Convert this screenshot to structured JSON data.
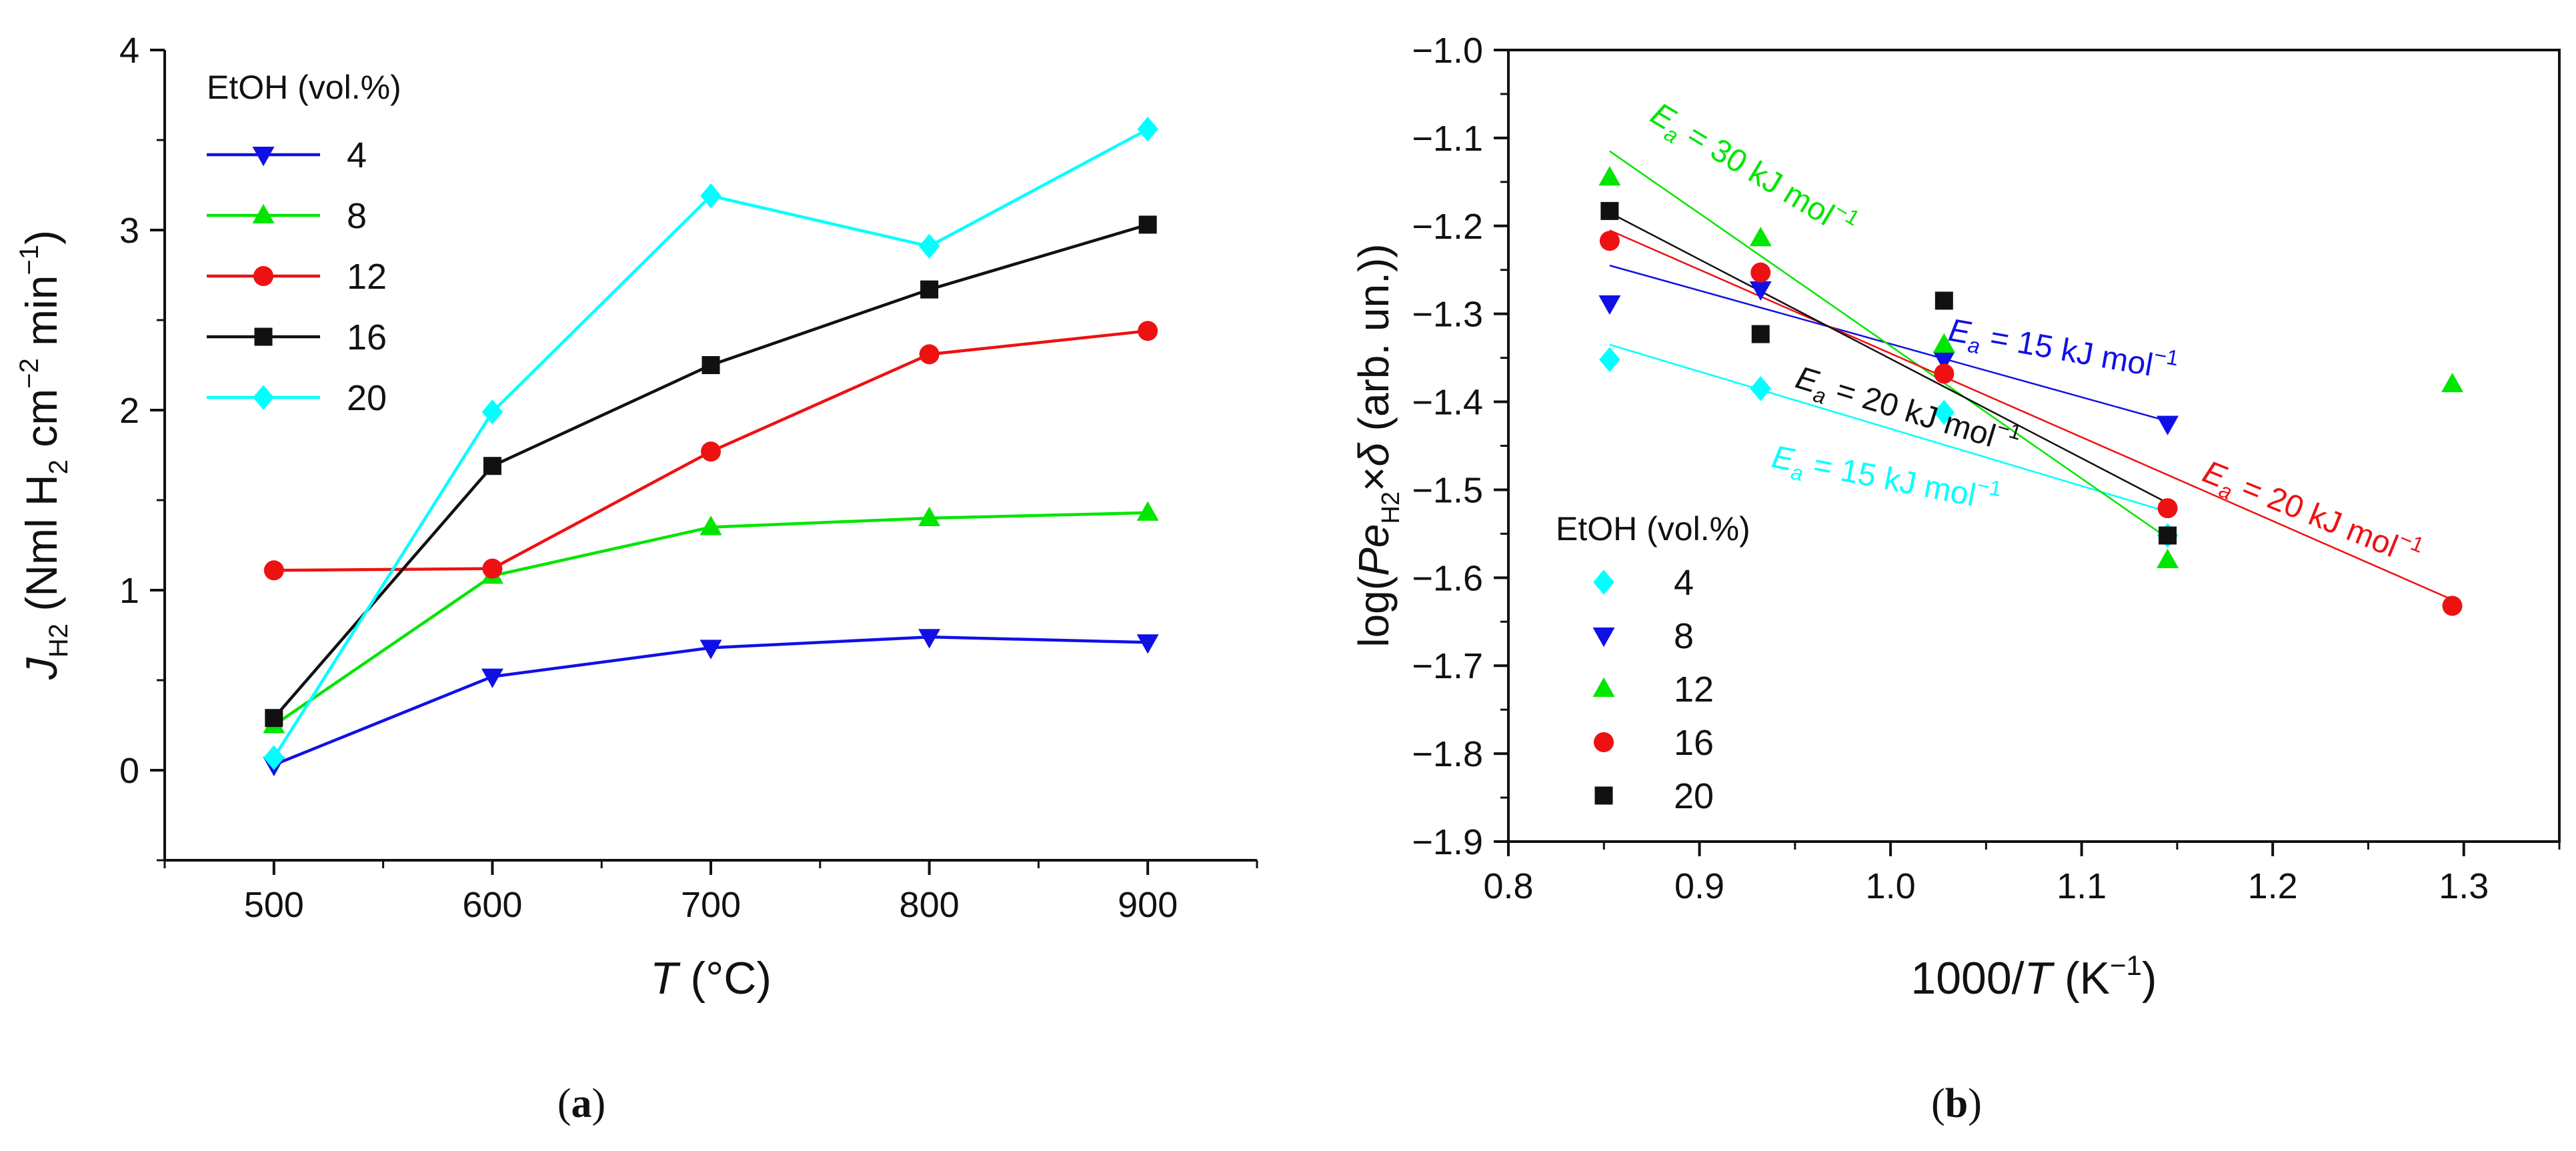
{
  "panels": {
    "a": {
      "caption": "(a)"
    },
    "b": {
      "caption": "(b)"
    }
  },
  "colors": {
    "4": "#1010e6",
    "8": "#00e600",
    "12": "#ee1111",
    "16": "#111111",
    "20": "#00ffff"
  },
  "chart_data": [
    {
      "type": "line",
      "panel": "a",
      "xlabel": "T (°C)",
      "ylabel": "J_H2 (Nml H2 cm^-2 min^-1)",
      "xlim": [
        450,
        950
      ],
      "ylim": [
        -0.5,
        4
      ],
      "xticks": [
        500,
        600,
        700,
        800,
        900
      ],
      "yticks": [
        0,
        1,
        2,
        3,
        4
      ],
      "legend": {
        "title": "EtOH (vol.%)",
        "placement": "top-left"
      },
      "x": [
        500,
        600,
        700,
        800,
        900
      ],
      "series": [
        {
          "name": "4",
          "marker": "triangle-down",
          "color": "#1010e6",
          "values": [
            0.03,
            0.52,
            0.68,
            0.74,
            0.71
          ]
        },
        {
          "name": "8",
          "marker": "triangle-up",
          "color": "#00e600",
          "values": [
            0.25,
            1.08,
            1.35,
            1.4,
            1.43
          ]
        },
        {
          "name": "12",
          "marker": "circle",
          "color": "#ee1111",
          "values": [
            1.11,
            1.12,
            1.77,
            2.31,
            2.44
          ]
        },
        {
          "name": "16",
          "marker": "square",
          "color": "#111111",
          "values": [
            0.29,
            1.69,
            2.25,
            2.67,
            3.03
          ]
        },
        {
          "name": "20",
          "marker": "diamond",
          "color": "#00ffff",
          "values": [
            0.07,
            1.99,
            3.19,
            2.91,
            3.56
          ]
        }
      ]
    },
    {
      "type": "scatter",
      "panel": "b",
      "xlabel": "1000/T (K^-1)",
      "ylabel": "log(Pe_H2 × δ (arb. un.))",
      "xlim": [
        0.8,
        1.35
      ],
      "ylim": [
        -1.9,
        -1.0
      ],
      "xticks": [
        0.8,
        0.9,
        1.0,
        1.1,
        1.2,
        1.3
      ],
      "yticks": [
        -1.0,
        -1.1,
        -1.2,
        -1.3,
        -1.4,
        -1.5,
        -1.6,
        -1.7,
        -1.8,
        -1.9
      ],
      "legend": {
        "title": "EtOH (vol.%)",
        "placement": "bottom-left"
      },
      "series": [
        {
          "name": "4",
          "marker": "diamond",
          "color": "#00ffff",
          "x": [
            0.853,
            0.932,
            1.028,
            1.145
          ],
          "y": [
            -1.352,
            -1.385,
            -1.412,
            -1.552
          ]
        },
        {
          "name": "8",
          "marker": "triangle-down",
          "color": "#1010e6",
          "x": [
            0.853,
            0.932,
            1.028,
            1.145
          ],
          "y": [
            -1.288,
            -1.272,
            -1.352,
            -1.425
          ]
        },
        {
          "name": "12",
          "marker": "triangle-up",
          "color": "#00e600",
          "x": [
            0.853,
            0.932,
            1.028,
            1.145,
            1.294
          ],
          "y": [
            -1.145,
            -1.214,
            -1.335,
            -1.58,
            -1.38
          ]
        },
        {
          "name": "16",
          "marker": "circle",
          "color": "#ee1111",
          "x": [
            0.853,
            0.932,
            1.028,
            1.145,
            1.294
          ],
          "y": [
            -1.217,
            -1.253,
            -1.368,
            -1.521,
            -1.632
          ]
        },
        {
          "name": "20",
          "marker": "square",
          "color": "#111111",
          "x": [
            0.853,
            0.932,
            1.028,
            1.145
          ],
          "y": [
            -1.183,
            -1.323,
            -1.285,
            -1.552
          ]
        }
      ],
      "fit_lines": [
        {
          "series": "4",
          "color": "#00ffff",
          "x": [
            0.853,
            1.145
          ],
          "y": [
            -1.335,
            -1.525
          ]
        },
        {
          "series": "8",
          "color": "#1010e6",
          "x": [
            0.853,
            1.145
          ],
          "y": [
            -1.245,
            -1.422
          ]
        },
        {
          "series": "12",
          "color": "#00e600",
          "x": [
            0.853,
            1.145
          ],
          "y": [
            -1.115,
            -1.555
          ]
        },
        {
          "series": "16",
          "color": "#ee1111",
          "x": [
            0.853,
            1.294
          ],
          "y": [
            -1.205,
            -1.625
          ]
        },
        {
          "series": "20",
          "color": "#111111",
          "x": [
            0.853,
            1.145
          ],
          "y": [
            -1.185,
            -1.515
          ]
        }
      ],
      "annotations": [
        {
          "value": "30",
          "color": "#00e600"
        },
        {
          "value": "15",
          "color": "#1010e6"
        },
        {
          "value": "20",
          "color": "#111111"
        },
        {
          "value": "15",
          "color": "#00ffff"
        },
        {
          "value": "20",
          "color": "#ee1111"
        }
      ]
    }
  ]
}
